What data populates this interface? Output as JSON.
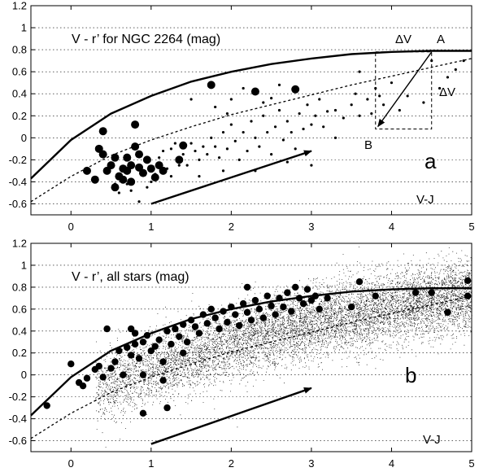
{
  "chart_data": [
    {
      "type": "scatter",
      "panel": "a",
      "title": "V - r’ for NGC 2264 (mag)",
      "panel_label": "a",
      "xlabel": "V-J",
      "ylabel": "",
      "xlim": [
        -0.5,
        5
      ],
      "ylim": [
        -0.7,
        1.2
      ],
      "x_ticks": [
        "0",
        "1",
        "2",
        "3",
        "4",
        "5"
      ],
      "y_ticks": [
        "-0.6",
        "-0.4",
        "-0.2",
        "0",
        "0.2",
        "0.4",
        "0.6",
        "0.8",
        "1",
        "1.2"
      ],
      "grid": "horizontal dotted",
      "solid_curve": [
        [
          -0.5,
          -0.37
        ],
        [
          0,
          -0.02
        ],
        [
          0.5,
          0.22
        ],
        [
          1,
          0.38
        ],
        [
          1.5,
          0.51
        ],
        [
          2,
          0.6
        ],
        [
          2.5,
          0.67
        ],
        [
          3,
          0.72
        ],
        [
          3.5,
          0.76
        ],
        [
          4,
          0.78
        ],
        [
          4.5,
          0.79
        ],
        [
          5,
          0.79
        ]
      ],
      "dotted_curve": [
        [
          -0.5,
          -0.58
        ],
        [
          0,
          -0.35
        ],
        [
          0.5,
          -0.16
        ],
        [
          1,
          -0.02
        ],
        [
          1.5,
          0.1
        ],
        [
          2,
          0.21
        ],
        [
          2.5,
          0.3
        ],
        [
          3,
          0.39
        ],
        [
          3.5,
          0.48
        ],
        [
          4,
          0.56
        ],
        [
          4.5,
          0.64
        ],
        [
          5,
          0.72
        ]
      ],
      "large_points": [
        [
          0.2,
          -0.3
        ],
        [
          0.3,
          -0.38
        ],
        [
          0.35,
          -0.1
        ],
        [
          0.4,
          -0.15
        ],
        [
          0.4,
          0.06
        ],
        [
          0.45,
          -0.3
        ],
        [
          0.5,
          -0.25
        ],
        [
          0.55,
          -0.45
        ],
        [
          0.6,
          -0.35
        ],
        [
          0.65,
          -0.38
        ],
        [
          0.65,
          -0.28
        ],
        [
          0.7,
          -0.3
        ],
        [
          0.7,
          -0.18
        ],
        [
          0.75,
          -0.4
        ],
        [
          0.75,
          -0.25
        ],
        [
          0.8,
          -0.08
        ],
        [
          0.8,
          0.12
        ],
        [
          0.85,
          -0.27
        ],
        [
          0.85,
          -0.15
        ],
        [
          0.9,
          -0.32
        ],
        [
          0.95,
          -0.2
        ],
        [
          1.0,
          -0.28
        ],
        [
          1.05,
          -0.36
        ],
        [
          1.1,
          -0.25
        ],
        [
          1.15,
          -0.3
        ],
        [
          1.35,
          -0.2
        ],
        [
          1.75,
          0.48
        ],
        [
          2.3,
          0.42
        ],
        [
          2.8,
          0.44
        ],
        [
          1.4,
          -0.07
        ],
        [
          0.55,
          -0.18
        ]
      ],
      "small_points": [
        [
          0.55,
          -0.42
        ],
        [
          0.6,
          -0.5
        ],
        [
          0.7,
          -0.42
        ],
        [
          0.75,
          -0.48
        ],
        [
          0.85,
          -0.58
        ],
        [
          0.95,
          -0.45
        ],
        [
          1.0,
          -0.4
        ],
        [
          1.05,
          -0.33
        ],
        [
          1.1,
          -0.18
        ],
        [
          1.2,
          -0.28
        ],
        [
          1.25,
          -0.1
        ],
        [
          1.3,
          -0.05
        ],
        [
          1.35,
          -0.25
        ],
        [
          1.4,
          -0.15
        ],
        [
          1.45,
          -0.25
        ],
        [
          1.5,
          -0.05
        ],
        [
          1.55,
          -0.12
        ],
        [
          1.6,
          -0.2
        ],
        [
          1.65,
          -0.08
        ],
        [
          1.7,
          -0.15
        ],
        [
          1.75,
          0.0
        ],
        [
          1.8,
          -0.08
        ],
        [
          1.85,
          -0.18
        ],
        [
          1.9,
          0.05
        ],
        [
          1.95,
          -0.1
        ],
        [
          2.0,
          0.12
        ],
        [
          2.05,
          -0.03
        ],
        [
          2.1,
          -0.2
        ],
        [
          2.15,
          0.05
        ],
        [
          2.2,
          -0.12
        ],
        [
          2.25,
          0.15
        ],
        [
          2.3,
          0.0
        ],
        [
          2.35,
          -0.08
        ],
        [
          2.4,
          0.2
        ],
        [
          2.45,
          0.05
        ],
        [
          2.5,
          -0.15
        ],
        [
          2.55,
          0.1
        ],
        [
          2.6,
          0.25
        ],
        [
          2.65,
          -0.02
        ],
        [
          2.7,
          0.15
        ],
        [
          2.75,
          0.05
        ],
        [
          2.8,
          -0.1
        ],
        [
          2.85,
          0.22
        ],
        [
          2.9,
          0.08
        ],
        [
          2.95,
          0.3
        ],
        [
          3.0,
          0.12
        ],
        [
          3.05,
          0.2
        ],
        [
          3.1,
          0.35
        ],
        [
          3.15,
          0.1
        ],
        [
          3.2,
          0.24
        ],
        [
          3.3,
          0.25
        ],
        [
          3.4,
          0.18
        ],
        [
          3.5,
          0.3
        ],
        [
          3.55,
          0.4
        ],
        [
          3.6,
          0.2
        ],
        [
          3.7,
          0.35
        ],
        [
          3.75,
          0.22
        ],
        [
          3.8,
          0.45
        ],
        [
          3.9,
          0.3
        ],
        [
          4.0,
          0.5
        ],
        [
          4.1,
          0.25
        ],
        [
          4.2,
          0.38
        ],
        [
          4.4,
          0.32
        ],
        [
          4.5,
          0.7
        ],
        [
          4.6,
          0.45
        ],
        [
          4.7,
          0.55
        ],
        [
          4.8,
          0.62
        ],
        [
          4.9,
          0.7
        ],
        [
          1.5,
          0.35
        ],
        [
          1.8,
          0.28
        ],
        [
          2.0,
          0.35
        ],
        [
          2.15,
          0.45
        ],
        [
          2.6,
          0.48
        ],
        [
          3.0,
          -0.25
        ],
        [
          3.3,
          0.0
        ],
        [
          1.6,
          -0.35
        ],
        [
          1.9,
          -0.3
        ],
        [
          2.3,
          -0.3
        ],
        [
          2.7,
          -0.22
        ],
        [
          1.95,
          0.22
        ],
        [
          2.4,
          0.32
        ],
        [
          2.5,
          0.36
        ],
        [
          3.6,
          0.6
        ],
        [
          3.85,
          0.38
        ],
        [
          1.15,
          -0.12
        ],
        [
          1.25,
          -0.35
        ]
      ],
      "arrow": {
        "from": [
          1.0,
          -0.6
        ],
        "to": [
          3.0,
          -0.12
        ]
      },
      "reddening_vector": {
        "A": [
          4.5,
          0.78
        ],
        "B": [
          3.8,
          0.08
        ]
      },
      "annotations": {
        "A": "A",
        "B": "B",
        "dV_top": "ΔV",
        "dV_right": "ΔV"
      }
    },
    {
      "type": "scatter",
      "panel": "b",
      "title": "V - r’, all stars (mag)",
      "panel_label": "b",
      "xlabel": "V-J",
      "ylabel": "",
      "xlim": [
        -0.5,
        5
      ],
      "ylim": [
        -0.7,
        1.2
      ],
      "x_ticks": [
        "0",
        "1",
        "2",
        "3",
        "4",
        "5"
      ],
      "y_ticks": [
        "-0.6",
        "-0.4",
        "-0.2",
        "0",
        "0.2",
        "0.4",
        "0.6",
        "0.8",
        "1",
        "1.2"
      ],
      "grid": "horizontal dotted",
      "solid_curve": [
        [
          -0.5,
          -0.37
        ],
        [
          0,
          -0.02
        ],
        [
          0.5,
          0.22
        ],
        [
          1,
          0.38
        ],
        [
          1.5,
          0.51
        ],
        [
          2,
          0.6
        ],
        [
          2.5,
          0.67
        ],
        [
          3,
          0.72
        ],
        [
          3.5,
          0.76
        ],
        [
          4,
          0.78
        ],
        [
          4.5,
          0.79
        ],
        [
          5,
          0.79
        ]
      ],
      "dotted_curve": [
        [
          -0.5,
          -0.58
        ],
        [
          0,
          -0.35
        ],
        [
          0.5,
          -0.16
        ],
        [
          1,
          -0.02
        ],
        [
          1.5,
          0.1
        ],
        [
          2,
          0.21
        ],
        [
          2.5,
          0.3
        ],
        [
          3,
          0.39
        ],
        [
          3.5,
          0.48
        ],
        [
          4,
          0.56
        ],
        [
          4.5,
          0.64
        ],
        [
          5,
          0.72
        ]
      ],
      "large_points": [
        [
          -0.3,
          -0.28
        ],
        [
          0.0,
          0.1
        ],
        [
          0.1,
          -0.07
        ],
        [
          0.15,
          -0.1
        ],
        [
          0.2,
          -0.03
        ],
        [
          0.3,
          0.05
        ],
        [
          0.35,
          0.08
        ],
        [
          0.4,
          -0.02
        ],
        [
          0.5,
          0.06
        ],
        [
          0.55,
          0.12
        ],
        [
          0.6,
          0.22
        ],
        [
          0.65,
          0.0
        ],
        [
          0.7,
          0.25
        ],
        [
          0.75,
          0.18
        ],
        [
          0.8,
          0.28
        ],
        [
          0.85,
          0.15
        ],
        [
          0.9,
          0.3
        ],
        [
          0.95,
          0.36
        ],
        [
          1.0,
          0.22
        ],
        [
          1.05,
          0.26
        ],
        [
          1.1,
          0.32
        ],
        [
          1.15,
          0.12
        ],
        [
          1.2,
          0.4
        ],
        [
          1.25,
          0.28
        ],
        [
          1.3,
          0.42
        ],
        [
          1.35,
          0.35
        ],
        [
          1.4,
          0.46
        ],
        [
          1.45,
          0.3
        ],
        [
          1.5,
          0.5
        ],
        [
          1.55,
          0.44
        ],
        [
          1.6,
          0.38
        ],
        [
          1.65,
          0.55
        ],
        [
          1.7,
          0.47
        ],
        [
          1.75,
          0.6
        ],
        [
          1.8,
          0.52
        ],
        [
          1.85,
          0.42
        ],
        [
          1.9,
          0.58
        ],
        [
          1.95,
          0.48
        ],
        [
          2.0,
          0.62
        ],
        [
          2.05,
          0.55
        ],
        [
          2.1,
          0.45
        ],
        [
          2.15,
          0.65
        ],
        [
          2.2,
          0.57
        ],
        [
          2.25,
          0.5
        ],
        [
          2.3,
          0.68
        ],
        [
          2.35,
          0.6
        ],
        [
          2.4,
          0.52
        ],
        [
          2.45,
          0.72
        ],
        [
          2.5,
          0.63
        ],
        [
          2.55,
          0.55
        ],
        [
          2.6,
          0.7
        ],
        [
          2.65,
          0.62
        ],
        [
          2.7,
          0.75
        ],
        [
          2.75,
          0.58
        ],
        [
          2.8,
          0.8
        ],
        [
          2.85,
          0.7
        ],
        [
          2.9,
          0.65
        ],
        [
          2.95,
          0.78
        ],
        [
          3.0,
          0.68
        ],
        [
          3.05,
          0.72
        ],
        [
          3.1,
          0.6
        ],
        [
          3.2,
          0.7
        ],
        [
          3.5,
          0.62
        ],
        [
          3.6,
          0.85
        ],
        [
          3.8,
          0.72
        ],
        [
          4.3,
          0.75
        ],
        [
          4.5,
          0.75
        ],
        [
          4.7,
          0.57
        ],
        [
          4.95,
          0.72
        ],
        [
          4.95,
          0.86
        ],
        [
          0.9,
          -0.35
        ],
        [
          1.2,
          -0.3
        ],
        [
          0.45,
          0.42
        ],
        [
          0.75,
          0.42
        ],
        [
          0.8,
          0.38
        ],
        [
          1.4,
          0.2
        ],
        [
          2.2,
          0.8
        ],
        [
          0.9,
          0.0
        ],
        [
          1.15,
          -0.05
        ]
      ],
      "arrow": {
        "from": [
          1.0,
          -0.63
        ],
        "to": [
          3.0,
          -0.12
        ]
      }
    }
  ]
}
